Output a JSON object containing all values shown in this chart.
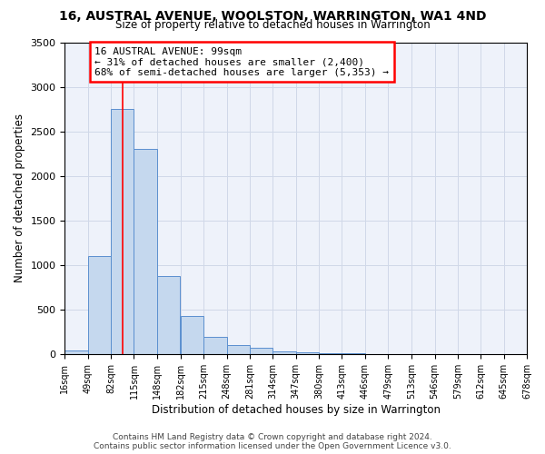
{
  "title": "16, AUSTRAL AVENUE, WOOLSTON, WARRINGTON, WA1 4ND",
  "subtitle": "Size of property relative to detached houses in Warrington",
  "xlabel": "Distribution of detached houses by size in Warrington",
  "ylabel": "Number of detached properties",
  "bar_color": "#c5d8ee",
  "bar_edge_color": "#5b8fcf",
  "background_color": "#eef2fa",
  "grid_color": "#d0d8e8",
  "annotation_line1": "16 AUSTRAL AVENUE: 99sqm",
  "annotation_line2": "← 31% of detached houses are smaller (2,400)",
  "annotation_line3": "68% of semi-detached houses are larger (5,353) →",
  "red_line_x": 99,
  "footer1": "Contains HM Land Registry data © Crown copyright and database right 2024.",
  "footer2": "Contains public sector information licensed under the Open Government Licence v3.0.",
  "bin_edges": [
    16,
    49,
    82,
    115,
    148,
    182,
    215,
    248,
    281,
    314,
    347,
    380,
    413,
    446,
    479,
    513,
    546,
    579,
    612,
    645,
    678
  ],
  "bin_heights": [
    40,
    1100,
    2750,
    2300,
    880,
    430,
    195,
    100,
    65,
    30,
    15,
    10,
    5,
    2,
    1,
    0,
    0,
    0,
    0,
    0
  ],
  "ylim": [
    0,
    3500
  ],
  "yticks": [
    0,
    500,
    1000,
    1500,
    2000,
    2500,
    3000,
    3500
  ],
  "tick_labels": [
    "16sqm",
    "49sqm",
    "82sqm",
    "115sqm",
    "148sqm",
    "182sqm",
    "215sqm",
    "248sqm",
    "281sqm",
    "314sqm",
    "347sqm",
    "380sqm",
    "413sqm",
    "446sqm",
    "479sqm",
    "513sqm",
    "546sqm",
    "579sqm",
    "612sqm",
    "645sqm",
    "678sqm"
  ]
}
